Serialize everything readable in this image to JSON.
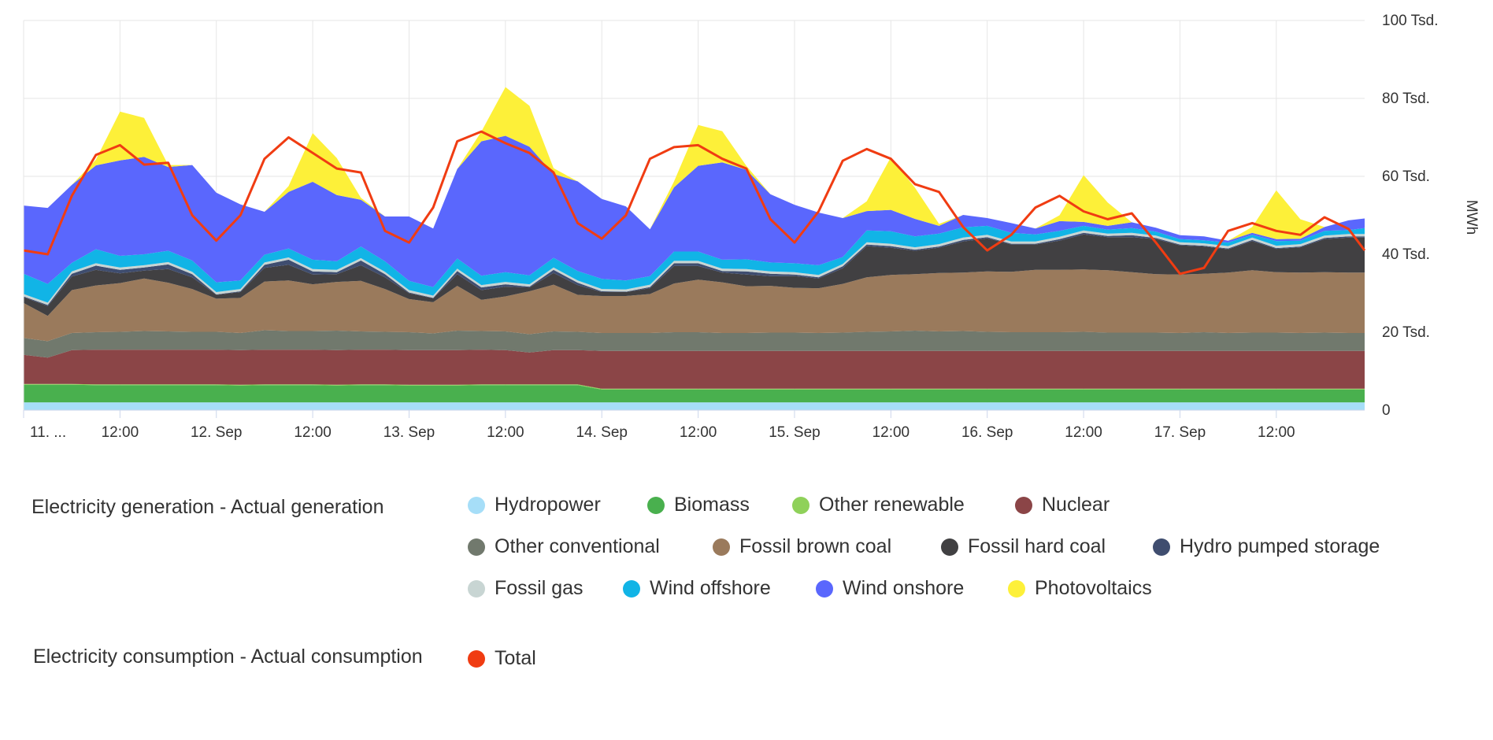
{
  "chart_data": {
    "type": "area",
    "stacked": true,
    "unit": "MWh",
    "ylim": [
      0,
      100000
    ],
    "y_ticks": [
      0,
      20000,
      40000,
      60000,
      80000,
      100000
    ],
    "y_tick_labels": [
      "0",
      "20 Tsd.",
      "40 Tsd.",
      "60 Tsd.",
      "80 Tsd.",
      "100 Tsd."
    ],
    "x_start": "2021-09-11T00:00",
    "x_end": "2021-09-17T23:00",
    "x_ticks": [
      {
        "time": "2021-09-11T00:00",
        "label": "11. ..."
      },
      {
        "time": "2021-09-11T12:00",
        "label": "12:00"
      },
      {
        "time": "2021-09-12T00:00",
        "label": "12. Sep"
      },
      {
        "time": "2021-09-12T12:00",
        "label": "12:00"
      },
      {
        "time": "2021-09-13T00:00",
        "label": "13. Sep"
      },
      {
        "time": "2021-09-13T12:00",
        "label": "12:00"
      },
      {
        "time": "2021-09-14T00:00",
        "label": "14. Sep"
      },
      {
        "time": "2021-09-14T12:00",
        "label": "12:00"
      },
      {
        "time": "2021-09-15T00:00",
        "label": "15. Sep"
      },
      {
        "time": "2021-09-15T12:00",
        "label": "12:00"
      },
      {
        "time": "2021-09-16T00:00",
        "label": "16. Sep"
      },
      {
        "time": "2021-09-16T12:00",
        "label": "12:00"
      },
      {
        "time": "2021-09-17T00:00",
        "label": "17. Sep"
      },
      {
        "time": "2021-09-17T12:00",
        "label": "12:00"
      }
    ],
    "time_points": [
      "2021-09-11T00:00",
      "2021-09-11T03:00",
      "2021-09-11T06:00",
      "2021-09-11T09:00",
      "2021-09-11T12:00",
      "2021-09-11T15:00",
      "2021-09-11T18:00",
      "2021-09-11T21:00",
      "2021-09-12T00:00",
      "2021-09-12T03:00",
      "2021-09-12T06:00",
      "2021-09-12T09:00",
      "2021-09-12T12:00",
      "2021-09-12T15:00",
      "2021-09-12T18:00",
      "2021-09-12T21:00",
      "2021-09-13T00:00",
      "2021-09-13T03:00",
      "2021-09-13T06:00",
      "2021-09-13T09:00",
      "2021-09-13T12:00",
      "2021-09-13T15:00",
      "2021-09-13T18:00",
      "2021-09-13T21:00",
      "2021-09-14T00:00",
      "2021-09-14T03:00",
      "2021-09-14T06:00",
      "2021-09-14T09:00",
      "2021-09-14T12:00",
      "2021-09-14T15:00",
      "2021-09-14T18:00",
      "2021-09-14T21:00",
      "2021-09-15T00:00",
      "2021-09-15T03:00",
      "2021-09-15T06:00",
      "2021-09-15T09:00",
      "2021-09-15T12:00",
      "2021-09-15T15:00",
      "2021-09-15T18:00",
      "2021-09-15T21:00",
      "2021-09-16T00:00",
      "2021-09-16T03:00",
      "2021-09-16T06:00",
      "2021-09-16T09:00",
      "2021-09-16T12:00",
      "2021-09-16T15:00",
      "2021-09-16T18:00",
      "2021-09-16T21:00",
      "2021-09-17T00:00",
      "2021-09-17T03:00",
      "2021-09-17T06:00",
      "2021-09-17T09:00",
      "2021-09-17T12:00",
      "2021-09-17T15:00",
      "2021-09-17T18:00",
      "2021-09-17T21:00",
      "2021-09-17T23:00"
    ],
    "series": [
      {
        "name": "Hydropower",
        "color": "#a6def8",
        "values": [
          2000,
          2000,
          2000,
          2000,
          2000,
          2000,
          2000,
          2000,
          2000,
          2000,
          2000,
          2000,
          2000,
          2000,
          2000,
          2000,
          2000,
          2000,
          2000,
          2000,
          2000,
          2000,
          2000,
          2000,
          2000,
          2000,
          2000,
          2000,
          2000,
          2000,
          2000,
          2000,
          2000,
          2000,
          2000,
          2000,
          2000,
          2000,
          2000,
          2000,
          2000,
          2000,
          2000,
          2000,
          2000,
          2000,
          2000,
          2000,
          2000,
          2000,
          2000,
          2000,
          2000,
          2000,
          2000,
          2000,
          2000
        ]
      },
      {
        "name": "Biomass",
        "color": "#49b04e",
        "values": [
          4500,
          4500,
          4500,
          4400,
          4400,
          4400,
          4400,
          4400,
          4400,
          4300,
          4400,
          4400,
          4400,
          4300,
          4400,
          4400,
          4300,
          4300,
          4300,
          4400,
          4400,
          4400,
          4400,
          4400,
          3300,
          3300,
          3300,
          3300,
          3300,
          3300,
          3300,
          3300,
          3300,
          3300,
          3300,
          3300,
          3300,
          3300,
          3300,
          3300,
          3300,
          3300,
          3300,
          3300,
          3300,
          3300,
          3300,
          3300,
          3300,
          3300,
          3300,
          3300,
          3300,
          3300,
          3300,
          3300,
          3300
        ]
      },
      {
        "name": "Other renewable",
        "color": "#8fd15a",
        "values": [
          200,
          200,
          200,
          200,
          200,
          200,
          200,
          200,
          200,
          200,
          200,
          200,
          200,
          200,
          200,
          200,
          200,
          200,
          200,
          200,
          200,
          200,
          200,
          200,
          200,
          200,
          200,
          200,
          200,
          200,
          200,
          200,
          200,
          200,
          200,
          200,
          200,
          200,
          200,
          200,
          200,
          200,
          200,
          200,
          200,
          200,
          200,
          200,
          200,
          200,
          200,
          200,
          200,
          200,
          200,
          200,
          200
        ]
      },
      {
        "name": "Nuclear",
        "color": "#8b4547",
        "values": [
          7500,
          6800,
          8700,
          8900,
          8900,
          8900,
          8900,
          8900,
          8900,
          8900,
          8900,
          8900,
          8900,
          8900,
          8900,
          8900,
          8900,
          8900,
          8900,
          8900,
          8800,
          8200,
          8800,
          8800,
          9700,
          9700,
          9700,
          9700,
          9700,
          9700,
          9700,
          9700,
          9700,
          9700,
          9700,
          9700,
          9700,
          9700,
          9700,
          9700,
          9700,
          9700,
          9700,
          9700,
          9700,
          9700,
          9700,
          9700,
          9700,
          9700,
          9700,
          9700,
          9700,
          9700,
          9700,
          9700,
          9700
        ]
      },
      {
        "name": "Other conventional",
        "color": "#71796d",
        "values": [
          4300,
          4200,
          4400,
          4500,
          4600,
          4800,
          4700,
          4600,
          4600,
          4400,
          5000,
          4800,
          4800,
          5000,
          4700,
          4600,
          4600,
          4300,
          5000,
          4800,
          4800,
          4700,
          4800,
          4700,
          4600,
          4600,
          4600,
          4800,
          4800,
          4600,
          4600,
          4700,
          4700,
          4600,
          4700,
          4900,
          5000,
          5200,
          5000,
          5100,
          4900,
          4800,
          4800,
          4800,
          4900,
          4700,
          4700,
          4700,
          4600,
          4800,
          4600,
          4700,
          4700,
          4600,
          4700,
          4600,
          4600
        ]
      },
      {
        "name": "Fossil brown coal",
        "color": "#9a7a5c",
        "values": [
          9000,
          6500,
          11000,
          12000,
          12500,
          13500,
          12500,
          11000,
          8500,
          9000,
          12500,
          13000,
          12000,
          12500,
          13000,
          11000,
          8500,
          8000,
          11500,
          8000,
          9000,
          11000,
          12000,
          9500,
          9500,
          9500,
          10000,
          12500,
          13500,
          13000,
          12000,
          12000,
          11500,
          11500,
          12500,
          14000,
          14500,
          14500,
          15000,
          15000,
          15500,
          15500,
          16000,
          16000,
          16000,
          16000,
          15500,
          15000,
          15000,
          15000,
          15500,
          16000,
          15500,
          15500,
          15500,
          15500,
          15500
        ]
      },
      {
        "name": "Fossil hard coal",
        "color": "#414042",
        "values": [
          1500,
          2500,
          3500,
          4000,
          2500,
          2000,
          3500,
          3000,
          1000,
          1500,
          3500,
          4000,
          2500,
          2000,
          4000,
          3000,
          1500,
          1000,
          3000,
          2500,
          2500,
          1000,
          3000,
          2500,
          1000,
          1000,
          1500,
          4500,
          3500,
          2500,
          3000,
          2500,
          3000,
          2500,
          4000,
          8000,
          7000,
          6000,
          6500,
          8000,
          8500,
          7000,
          6500,
          7500,
          9000,
          8500,
          9000,
          9000,
          7500,
          7000,
          6000,
          7500,
          6000,
          6500,
          8500,
          9000,
          9000
        ]
      },
      {
        "name": "Hydro pumped storage",
        "color": "#3f4d6f",
        "values": [
          200,
          300,
          700,
          1100,
          900,
          800,
          1200,
          800,
          100,
          200,
          800,
          1300,
          800,
          500,
          1200,
          800,
          200,
          100,
          800,
          700,
          600,
          200,
          800,
          600,
          200,
          100,
          300,
          700,
          700,
          400,
          800,
          600,
          400,
          300,
          500,
          400,
          400,
          300,
          300,
          400,
          300,
          200,
          200,
          400,
          400,
          300,
          500,
          300,
          200,
          200,
          200,
          300,
          200,
          200,
          300,
          300,
          300
        ]
      },
      {
        "name": "Fossil gas",
        "color": "#c8d5d3",
        "values": [
          600,
          600,
          600,
          600,
          600,
          600,
          600,
          600,
          600,
          600,
          600,
          600,
          600,
          600,
          600,
          600,
          600,
          600,
          600,
          600,
          600,
          600,
          600,
          600,
          600,
          600,
          600,
          600,
          600,
          600,
          600,
          600,
          600,
          600,
          600,
          600,
          600,
          600,
          600,
          600,
          600,
          600,
          600,
          600,
          600,
          600,
          600,
          600,
          600,
          600,
          600,
          600,
          600,
          600,
          600,
          600,
          600
        ]
      },
      {
        "name": "Wind offshore",
        "color": "#11b4e6",
        "values": [
          5200,
          4800,
          2200,
          3600,
          3000,
          2800,
          2900,
          2900,
          2500,
          2200,
          2000,
          2300,
          2400,
          2200,
          3000,
          2700,
          2400,
          2200,
          2600,
          2400,
          2500,
          2300,
          2500,
          2400,
          2600,
          2300,
          2200,
          2400,
          2400,
          2300,
          2500,
          2300,
          2300,
          2500,
          1800,
          3000,
          3200,
          2800,
          2700,
          2600,
          2300,
          2200,
          1800,
          1500,
          1200,
          1000,
          1200,
          1000,
          800,
          800,
          900,
          700,
          1200,
          900,
          1200,
          1000,
          1500
        ]
      },
      {
        "name": "Wind onshore",
        "color": "#5a67fd",
        "values": [
          17500,
          19500,
          20000,
          21500,
          24500,
          25000,
          21500,
          24500,
          23000,
          19500,
          11000,
          14500,
          20000,
          17000,
          12000,
          11500,
          16500,
          15000,
          23000,
          34500,
          35000,
          33000,
          21500,
          23000,
          20500,
          19000,
          12000,
          16500,
          22000,
          25000,
          23000,
          17500,
          15000,
          13500,
          10000,
          5000,
          5500,
          4500,
          2000,
          3200,
          2000,
          2500,
          1500,
          2500,
          1000,
          1000,
          1500,
          1000,
          1000,
          1000,
          500,
          500,
          500,
          500,
          1000,
          2500,
          2500
        ]
      },
      {
        "name": "Photovoltaics",
        "color": "#fdf039",
        "values": [
          0,
          0,
          0,
          1500,
          12500,
          10000,
          500,
          0,
          0,
          0,
          0,
          1500,
          12500,
          9500,
          500,
          0,
          0,
          0,
          0,
          2500,
          12500,
          10500,
          1500,
          0,
          0,
          0,
          0,
          1500,
          10500,
          8000,
          1000,
          0,
          0,
          0,
          0,
          2500,
          13500,
          8000,
          500,
          0,
          0,
          0,
          0,
          1500,
          12000,
          6000,
          0,
          0,
          0,
          0,
          0,
          1500,
          12500,
          5000,
          0,
          0,
          0
        ]
      },
      {
        "name": "Total",
        "color": "#f03c12",
        "type": "line",
        "values": [
          41000,
          40000,
          55000,
          65500,
          68000,
          63000,
          63500,
          50000,
          43500,
          50000,
          64500,
          70000,
          66000,
          62000,
          61000,
          46000,
          43000,
          52000,
          69000,
          71500,
          68500,
          66000,
          61000,
          48000,
          44000,
          50000,
          64500,
          67500,
          68000,
          64500,
          62000,
          49000,
          43000,
          51000,
          64000,
          67000,
          64500,
          58000,
          56000,
          47000,
          41000,
          45000,
          52000,
          55000,
          51000,
          49000,
          50500,
          43000,
          35000,
          36500,
          46000,
          48000,
          46000,
          45000,
          49500,
          46500,
          41000
        ]
      }
    ]
  },
  "axis": {
    "unit_label": "MWh"
  },
  "legend": {
    "generation_title": "Electricity generation - Actual generation",
    "consumption_title": "Electricity consumption - Actual consumption",
    "generation_items": [
      {
        "label": "Hydropower",
        "color": "#a6def8"
      },
      {
        "label": "Biomass",
        "color": "#49b04e"
      },
      {
        "label": "Other renewable",
        "color": "#8fd15a"
      },
      {
        "label": "Nuclear",
        "color": "#8b4547"
      },
      {
        "label": "Other conventional",
        "color": "#71796d"
      },
      {
        "label": "Fossil brown coal",
        "color": "#9a7a5c"
      },
      {
        "label": "Fossil hard coal",
        "color": "#414042"
      },
      {
        "label": "Hydro pumped storage",
        "color": "#3f4d6f"
      },
      {
        "label": "Fossil gas",
        "color": "#c8d5d3"
      },
      {
        "label": "Wind offshore",
        "color": "#11b4e6"
      },
      {
        "label": "Wind onshore",
        "color": "#5a67fd"
      },
      {
        "label": "Photovoltaics",
        "color": "#fdf039"
      }
    ],
    "consumption_items": [
      {
        "label": "Total",
        "color": "#f03c12"
      }
    ]
  }
}
